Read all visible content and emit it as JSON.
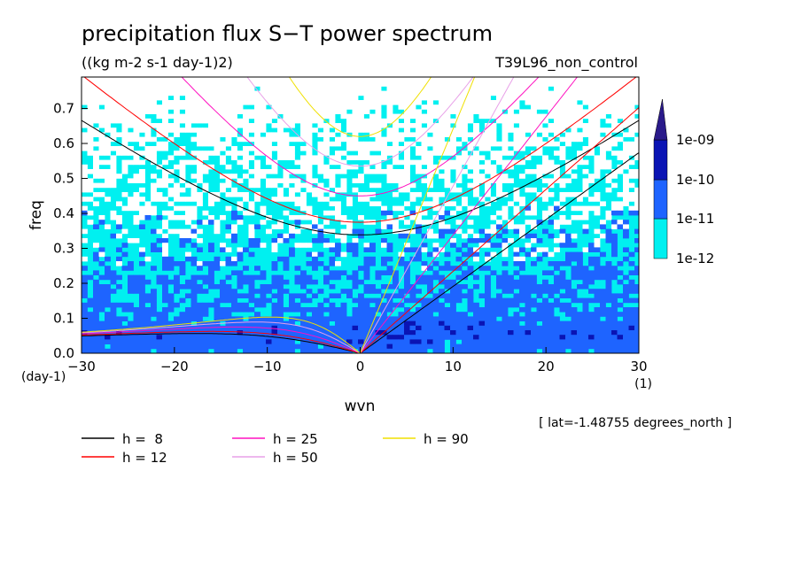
{
  "chart_data": {
    "type": "heatmap",
    "title": "precipitation flux S−T power spectrum",
    "subtitle": "((kg m-2 s-1 day-1)2)",
    "run_label": "T39L96_non_control",
    "location_note": "[ lat=-1.48755 degrees_north ]",
    "xlabel": "wvn",
    "ylabel": "freq",
    "x_unit": "(1)",
    "y_unit": "(day-1)",
    "xlim": [
      -30,
      30
    ],
    "ylim": [
      0,
      0.79
    ],
    "xticks": [
      -30,
      -20,
      -10,
      0,
      10,
      20,
      30
    ],
    "xtick_labels": [
      "−30",
      "−20",
      "−10",
      "0",
      "10",
      "20",
      "30"
    ],
    "yticks": [
      0.0,
      0.1,
      0.2,
      0.3,
      0.4,
      0.5,
      0.6,
      0.7
    ],
    "ytick_labels": [
      "0.0",
      "0.1",
      "0.2",
      "0.3",
      "0.4",
      "0.5",
      "0.6",
      "0.7"
    ],
    "colorbar": {
      "labels": [
        "1e-09",
        "1e-10",
        "1e-11",
        "1e-12"
      ],
      "levels": [
        1e-12,
        1e-11,
        1e-10,
        1e-09
      ],
      "colors": [
        "#ffffff",
        "#00f0f0",
        "#1e64ff",
        "#0a14b4",
        "#2a1a8a"
      ]
    },
    "dispersion_curves": [
      {
        "label": "h =  8",
        "h": 8,
        "color": "#000000"
      },
      {
        "label": "h = 12",
        "h": 12,
        "color": "#ff0000"
      },
      {
        "label": "h = 25",
        "h": 25,
        "color": "#ff10c0"
      },
      {
        "label": "h = 50",
        "h": 50,
        "color": "#e8a0e8"
      },
      {
        "label": "h = 90",
        "h": 90,
        "color": "#f0e000"
      }
    ],
    "grid": false
  }
}
